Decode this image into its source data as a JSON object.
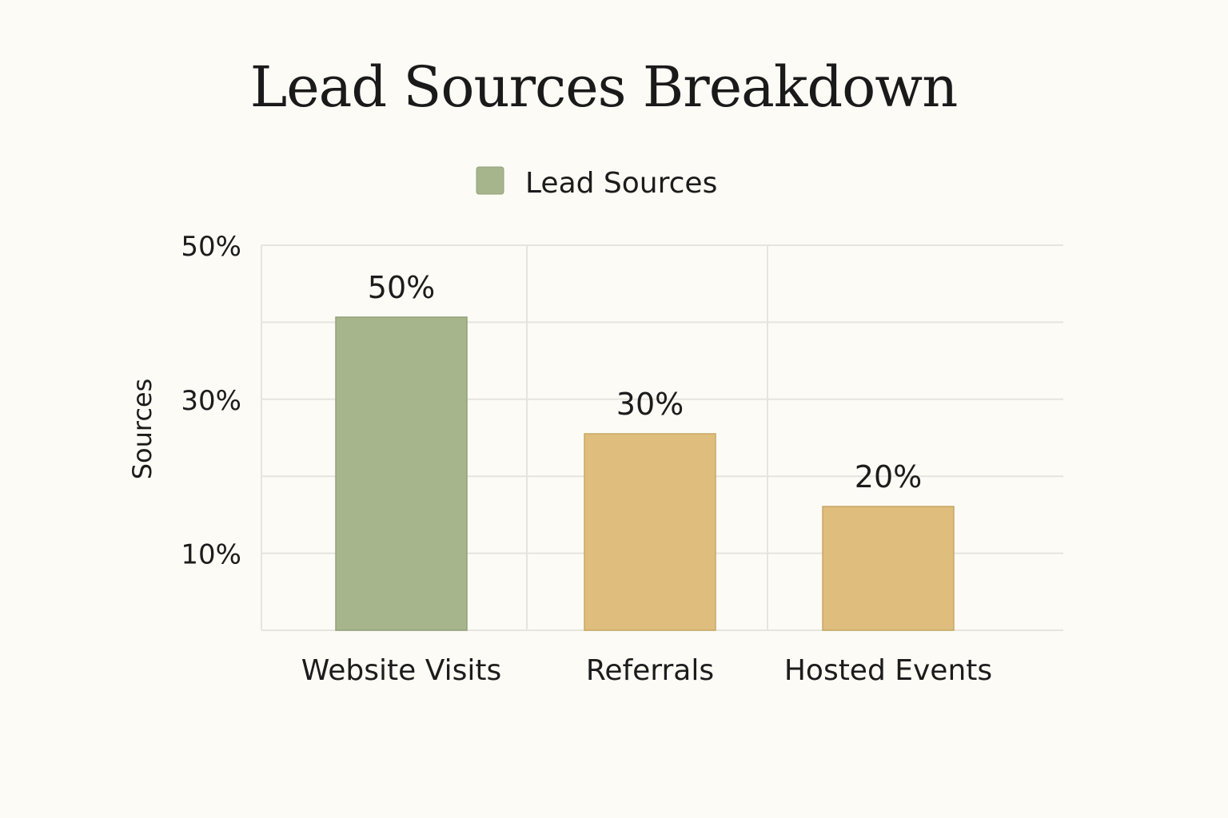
{
  "chart_data": {
    "type": "bar",
    "title": "Lead Sources Breakdown",
    "ylabel": "Sources",
    "xlabel": "",
    "categories": [
      "Website Visits",
      "Referrals",
      "Hosted Events"
    ],
    "series": [
      {
        "name": "Lead Sources",
        "values": [
          50,
          30,
          20
        ]
      }
    ],
    "data_labels": [
      "50%",
      "30%",
      "20%"
    ],
    "yticks": [
      {
        "value": 10,
        "label": "10%"
      },
      {
        "value": 30,
        "label": "30%"
      },
      {
        "value": 50,
        "label": "50%"
      }
    ],
    "ylim": [
      0,
      50
    ],
    "grid": true,
    "legend": {
      "position": "top-center",
      "label": "Lead Sources"
    },
    "colors": {
      "legend_swatch": "#a6b58c",
      "bars": [
        "#a6b58c",
        "#dfbd7c",
        "#dfbd7c"
      ],
      "bar_stroke": [
        "#92a278",
        "#c9a766",
        "#c9a766"
      ],
      "grid": "#e6e4de",
      "background": "#fcfbf6",
      "text": "#1c1c1c"
    }
  }
}
